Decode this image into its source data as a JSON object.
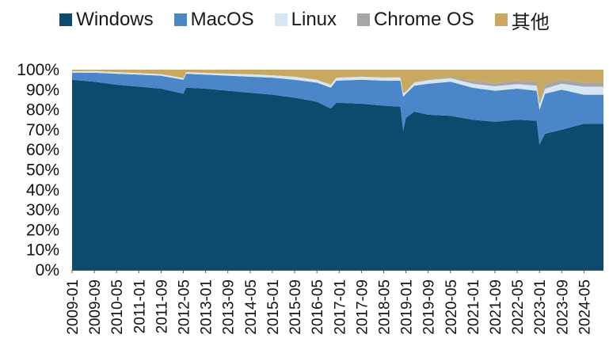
{
  "chart_data": {
    "type": "area",
    "stacked": true,
    "series": [
      {
        "name": "Windows",
        "color": "#0c4a6e"
      },
      {
        "name": "MacOS",
        "color": "#4a86c8"
      },
      {
        "name": "Linux",
        "color": "#d6e6f3"
      },
      {
        "name": "Chrome OS",
        "color": "#a6a6a6"
      },
      {
        "name": "其他",
        "color": "#c9a862"
      }
    ],
    "x_range": [
      "2009-01",
      "2024-12"
    ],
    "x_tick_labels": [
      "2009-01",
      "2009-09",
      "2010-05",
      "2011-01",
      "2011-09",
      "2012-05",
      "2013-01",
      "2013-09",
      "2014-05",
      "2015-01",
      "2015-09",
      "2016-05",
      "2017-01",
      "2017-09",
      "2018-05",
      "2019-01",
      "2019-09",
      "2020-05",
      "2021-01",
      "2021-09",
      "2022-05",
      "2023-01",
      "2023-09",
      "2024-05"
    ],
    "y_tick_labels": [
      "0%",
      "10%",
      "20%",
      "30%",
      "40%",
      "50%",
      "60%",
      "70%",
      "80%",
      "90%",
      "100%"
    ],
    "ylim": [
      0,
      100
    ],
    "points": [
      {
        "x": "2009-01",
        "Windows": 95.0,
        "MacOS": 3.5,
        "Linux": 0.7,
        "Chrome OS": 0.0,
        "其他": 0.8
      },
      {
        "x": "2009-09",
        "Windows": 94.0,
        "MacOS": 4.5,
        "Linux": 0.8,
        "Chrome OS": 0.0,
        "其他": 0.7
      },
      {
        "x": "2010-05",
        "Windows": 92.5,
        "MacOS": 5.5,
        "Linux": 0.8,
        "Chrome OS": 0.0,
        "其他": 1.2
      },
      {
        "x": "2011-01",
        "Windows": 91.5,
        "MacOS": 6.0,
        "Linux": 0.8,
        "Chrome OS": 0.0,
        "其他": 1.7
      },
      {
        "x": "2011-09",
        "Windows": 90.5,
        "MacOS": 6.5,
        "Linux": 0.8,
        "Chrome OS": 0.0,
        "其他": 2.2
      },
      {
        "x": "2012-05",
        "Windows": 88.0,
        "MacOS": 7.0,
        "Linux": 0.8,
        "Chrome OS": 0.0,
        "其他": 4.2
      },
      {
        "x": "2012-06",
        "Windows": 91.0,
        "MacOS": 7.0,
        "Linux": 0.8,
        "Chrome OS": 0.0,
        "其他": 1.2
      },
      {
        "x": "2013-01",
        "Windows": 90.5,
        "MacOS": 7.0,
        "Linux": 0.9,
        "Chrome OS": 0.0,
        "其他": 1.6
      },
      {
        "x": "2013-09",
        "Windows": 89.5,
        "MacOS": 7.5,
        "Linux": 1.0,
        "Chrome OS": 0.0,
        "其他": 2.0
      },
      {
        "x": "2014-05",
        "Windows": 88.5,
        "MacOS": 8.0,
        "Linux": 1.2,
        "Chrome OS": 0.0,
        "其他": 2.3
      },
      {
        "x": "2015-01",
        "Windows": 87.5,
        "MacOS": 8.5,
        "Linux": 1.2,
        "Chrome OS": 0.0,
        "其他": 2.8
      },
      {
        "x": "2015-09",
        "Windows": 86.0,
        "MacOS": 9.0,
        "Linux": 1.5,
        "Chrome OS": 0.0,
        "其他": 3.5
      },
      {
        "x": "2016-05",
        "Windows": 84.0,
        "MacOS": 9.5,
        "Linux": 1.5,
        "Chrome OS": 0.0,
        "其他": 5.0
      },
      {
        "x": "2016-10",
        "Windows": 80.5,
        "MacOS": 10.5,
        "Linux": 1.5,
        "Chrome OS": 0.0,
        "其他": 7.5
      },
      {
        "x": "2016-12",
        "Windows": 83.5,
        "MacOS": 11.0,
        "Linux": 1.5,
        "Chrome OS": 0.0,
        "其他": 4.0
      },
      {
        "x": "2017-09",
        "Windows": 83.0,
        "MacOS": 12.0,
        "Linux": 1.5,
        "Chrome OS": 0.0,
        "其他": 3.5
      },
      {
        "x": "2018-05",
        "Windows": 82.0,
        "MacOS": 12.5,
        "Linux": 1.6,
        "Chrome OS": 0.0,
        "其他": 3.9
      },
      {
        "x": "2018-11",
        "Windows": 81.5,
        "MacOS": 13.0,
        "Linux": 1.7,
        "Chrome OS": 0.0,
        "其他": 3.8
      },
      {
        "x": "2018-12",
        "Windows": 69.5,
        "MacOS": 17.0,
        "Linux": 1.8,
        "Chrome OS": 0.0,
        "其他": 11.7
      },
      {
        "x": "2019-01",
        "Windows": 76.0,
        "MacOS": 12.0,
        "Linux": 1.0,
        "Chrome OS": 0.0,
        "其他": 11.0
      },
      {
        "x": "2019-04",
        "Windows": 79.0,
        "MacOS": 13.0,
        "Linux": 1.5,
        "Chrome OS": 0.2,
        "其他": 6.3
      },
      {
        "x": "2019-09",
        "Windows": 77.5,
        "MacOS": 15.5,
        "Linux": 1.8,
        "Chrome OS": 0.4,
        "其他": 4.8
      },
      {
        "x": "2020-05",
        "Windows": 77.0,
        "MacOS": 17.0,
        "Linux": 1.8,
        "Chrome OS": 0.5,
        "其他": 3.7
      },
      {
        "x": "2021-01",
        "Windows": 75.0,
        "MacOS": 16.0,
        "Linux": 2.0,
        "Chrome OS": 1.5,
        "其他": 5.5
      },
      {
        "x": "2021-09",
        "Windows": 74.0,
        "MacOS": 15.5,
        "Linux": 2.2,
        "Chrome OS": 1.5,
        "其他": 6.8
      },
      {
        "x": "2022-05",
        "Windows": 75.0,
        "MacOS": 15.5,
        "Linux": 2.3,
        "Chrome OS": 1.8,
        "其他": 5.4
      },
      {
        "x": "2022-12",
        "Windows": 74.5,
        "MacOS": 15.0,
        "Linux": 2.5,
        "Chrome OS": 2.0,
        "其他": 6.0
      },
      {
        "x": "2023-01",
        "Windows": 62.5,
        "MacOS": 17.5,
        "Linux": 2.5,
        "Chrome OS": 2.0,
        "其他": 15.5
      },
      {
        "x": "2023-03",
        "Windows": 68.0,
        "MacOS": 20.0,
        "Linux": 2.5,
        "Chrome OS": 2.0,
        "其他": 7.5
      },
      {
        "x": "2023-09",
        "Windows": 70.0,
        "MacOS": 20.0,
        "Linux": 3.0,
        "Chrome OS": 2.0,
        "其他": 5.0
      },
      {
        "x": "2024-05",
        "Windows": 73.0,
        "MacOS": 14.5,
        "Linux": 4.0,
        "Chrome OS": 2.0,
        "其他": 6.5
      },
      {
        "x": "2024-12",
        "Windows": 73.0,
        "MacOS": 14.5,
        "Linux": 4.0,
        "Chrome OS": 2.0,
        "其他": 6.5
      }
    ]
  }
}
